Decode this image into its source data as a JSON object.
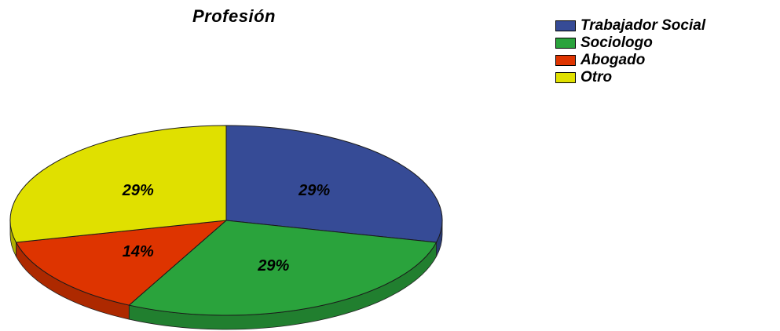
{
  "chart_data": {
    "type": "pie",
    "title": "Profesión",
    "categories": [
      "Trabajador Social",
      "Sociologo",
      "Abogado",
      "Otro"
    ],
    "values": [
      29,
      29,
      14,
      29
    ],
    "labels": [
      "29%",
      "29%",
      "14%",
      "29%"
    ],
    "colors": [
      "#364b96",
      "#2aa33c",
      "#de3400",
      "#e0e000"
    ],
    "legend_position": "top-right"
  }
}
